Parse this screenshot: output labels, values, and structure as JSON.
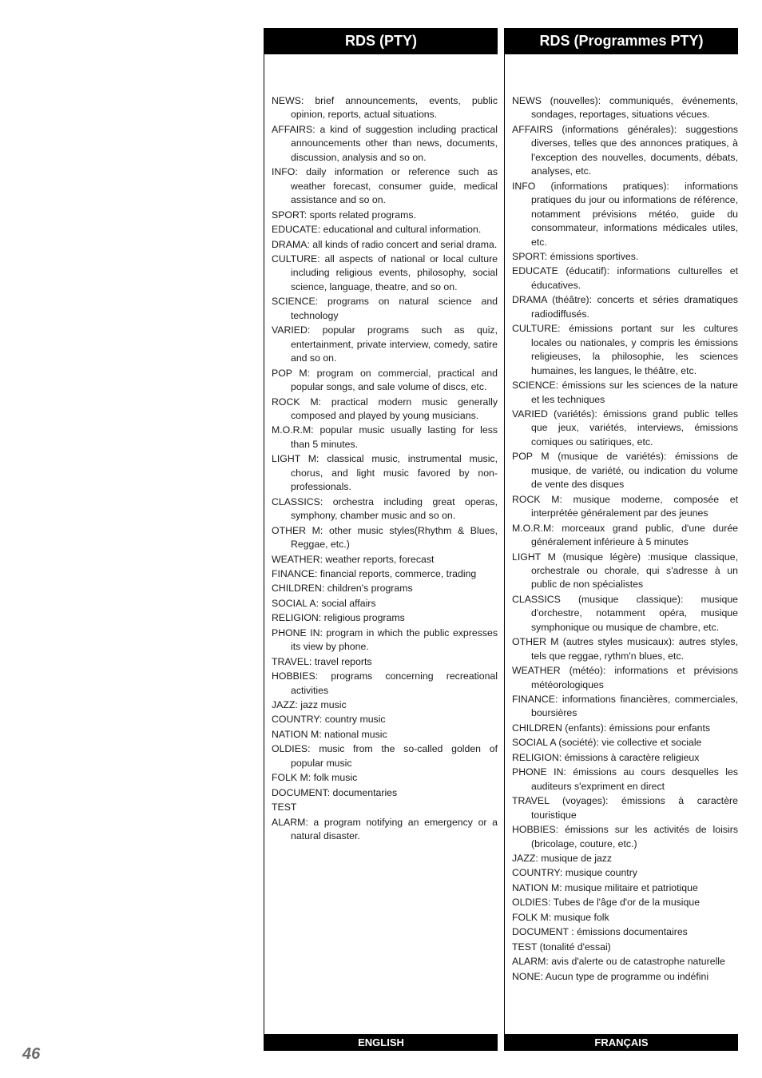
{
  "page_number": "46",
  "left": {
    "header": "RDS (PTY)",
    "footer": "ENGLISH",
    "entries": [
      "NEWS: brief announcements, events, public opinion, reports, actual situations.",
      "AFFAIRS: a kind of suggestion including practical announcements other than news, documents, discussion, analysis and so on.",
      "INFO: daily information or reference such as weather forecast, consumer guide, medical assistance and so on.",
      "SPORT: sports related programs.",
      "EDUCATE: educational and cultural information.",
      "DRAMA: all kinds of radio concert and serial drama.",
      "CULTURE: all aspects of national or local culture including religious events, philosophy, social science, language, theatre, and so on.",
      "SCIENCE: programs on natural science and technology",
      "VARIED: popular programs such as quiz, entertainment, private interview, comedy, satire and so on.",
      "POP M: program on commercial, practical and popular songs, and sale volume of discs, etc.",
      "ROCK M: practical modern music generally composed and played by young musicians.",
      "M.O.R.M: popular music usually lasting for less than 5 minutes.",
      "LIGHT M: classical music, instrumental music, chorus, and light music favored by non-professionals.",
      "CLASSICS: orchestra including great operas, symphony, chamber music and so on.",
      "OTHER M: other music styles(Rhythm & Blues, Reggae, etc.)",
      "WEATHER: weather reports, forecast",
      "FINANCE: financial reports, commerce, trading",
      "CHILDREN: children's programs",
      "SOCIAL A: social affairs",
      "RELIGION: religious programs",
      "PHONE IN: program in which the public expresses its view by phone.",
      "TRAVEL: travel reports",
      "HOBBIES: programs concerning recreational activities",
      "JAZZ: jazz music",
      "COUNTRY: country music",
      "NATION M: national music",
      "OLDIES: music from the so-called golden of popular music",
      "FOLK M: folk music",
      "DOCUMENT: documentaries",
      "TEST",
      "ALARM: a program notifying an emergency or a natural disaster."
    ]
  },
  "right": {
    "header": "RDS (Programmes PTY)",
    "footer": "FRANÇAIS",
    "entries": [
      "NEWS (nouvelles): communiqués, événements, sondages, reportages, situations vécues.",
      "AFFAIRS (informations générales): suggestions diverses, telles que des annonces pratiques, à l'exception des nouvelles, documents, débats, analyses, etc.",
      "INFO (informations pratiques): informations pratiques du jour ou informations de référence, notamment prévisions météo, guide du consommateur, informations médicales utiles, etc.",
      "SPORT: émissions sportives.",
      "EDUCATE (éducatif): informations culturelles et éducatives.",
      "DRAMA (théâtre): concerts et séries dramatiques radiodiffusés.",
      "CULTURE: émissions portant sur les cultures locales ou nationales, y compris les émissions religieuses, la philosophie, les sciences humaines, les langues, le théâtre, etc.",
      "SCIENCE: émissions sur les sciences de la nature et les techniques",
      "VARIED (variétés): émissions grand public telles que jeux, variétés, interviews, émissions comiques ou satiriques, etc.",
      "POP M (musique de variétés): émissions de musique, de variété, ou indication du volume de vente des disques",
      "ROCK M: musique moderne, composée et interprétée généralement par des jeunes",
      "M.O.R.M: morceaux grand public, d'une durée généralement inférieure à 5 minutes",
      "LIGHT M (musique légère) :musique classique, orchestrale ou chorale, qui s'adresse à un public de non spécialistes",
      "CLASSICS (musique classique): musique d'orchestre, notamment opéra, musique symphonique ou musique de chambre, etc.",
      "OTHER M (autres styles musicaux): autres styles, tels que reggae, rythm'n blues, etc.",
      "WEATHER (météo): informations et prévisions météorologiques",
      "FINANCE: informations financières, commerciales, boursières",
      "CHILDREN (enfants): émissions pour enfants",
      "SOCIAL A (société): vie collective et sociale",
      "RELIGION: émissions à caractère religieux",
      "PHONE IN: émissions au cours desquelles les auditeurs s'expriment en direct",
      "TRAVEL (voyages): émissions à caractère touristique",
      "HOBBIES: émissions sur les activités de loisirs (bricolage, couture, etc.)",
      "JAZZ: musique de jazz",
      "COUNTRY: musique country",
      "NATION M: musique militaire et patriotique",
      "OLDIES: Tubes de l'âge d'or de la musique",
      "FOLK M: musique folk",
      "DOCUMENT : émissions documentaires",
      "TEST (tonalité d'essai)",
      "ALARM: avis d'alerte ou de catastrophe naturelle",
      "NONE: Aucun type de programme ou indéfini"
    ]
  }
}
